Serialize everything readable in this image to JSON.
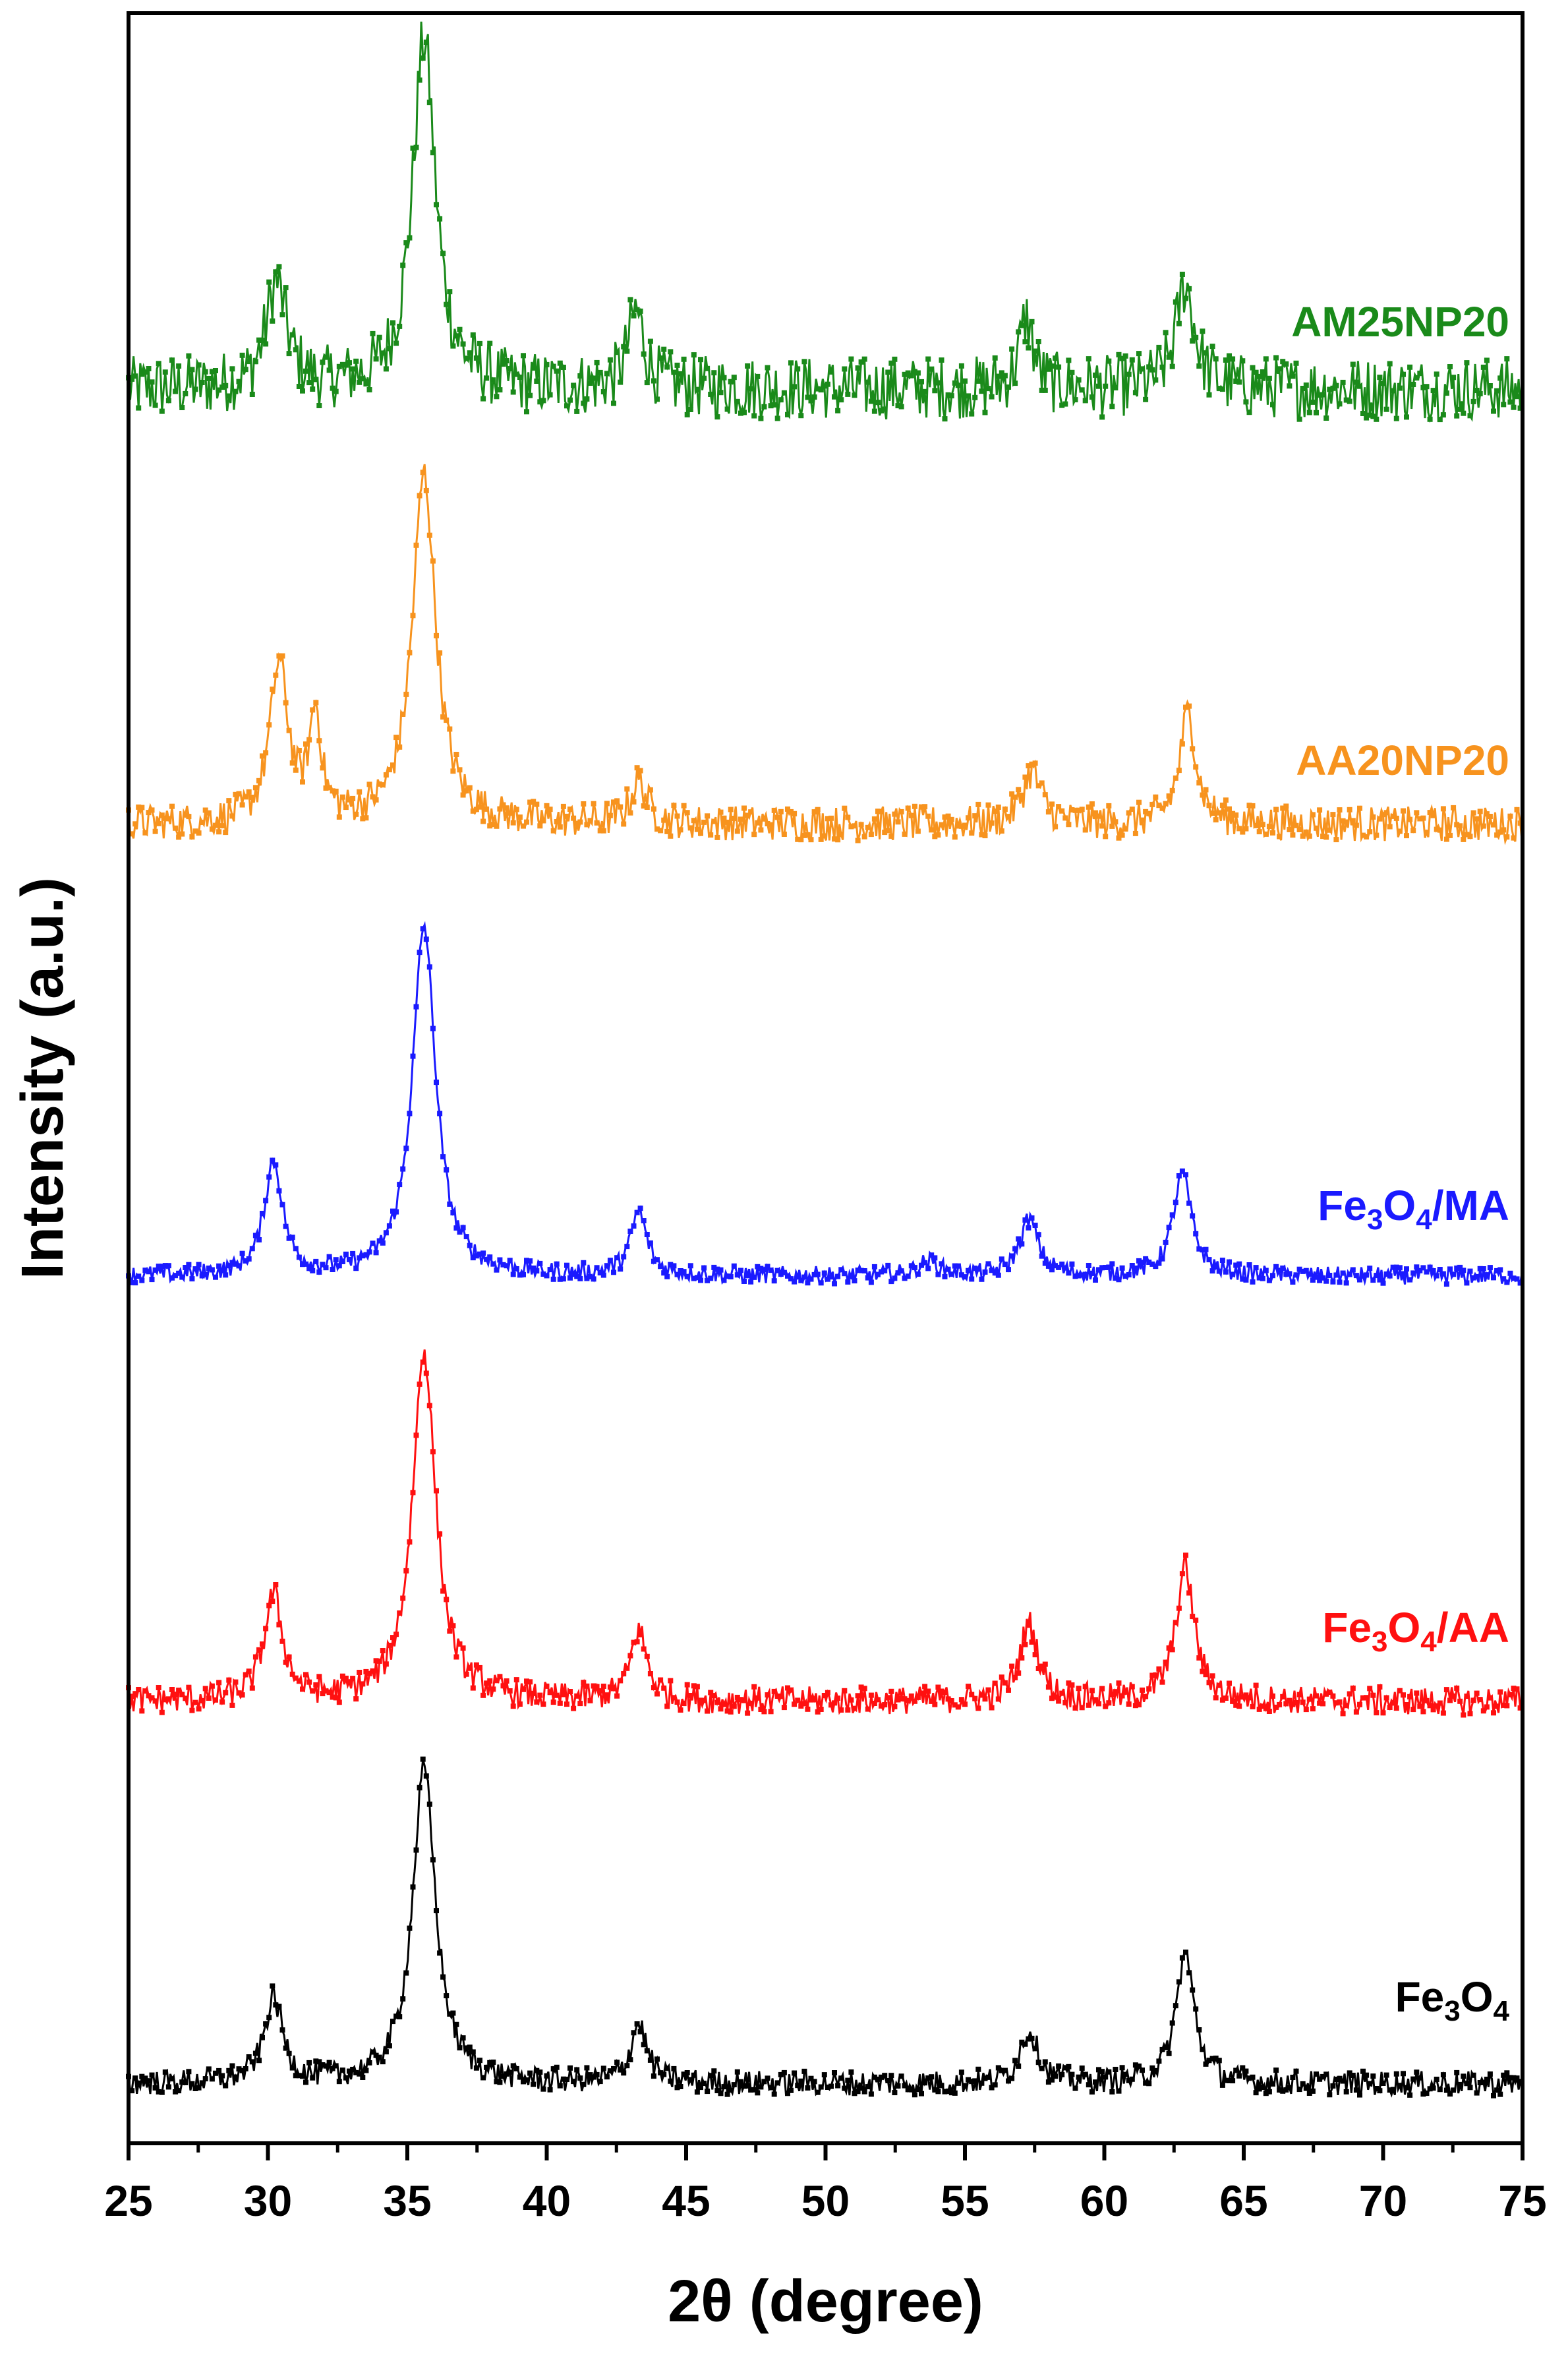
{
  "chart_data": {
    "type": "line",
    "title": "",
    "xlabel": "2θ (degree)",
    "ylabel": "Intensity (a.u.)",
    "xlim": [
      25,
      75
    ],
    "xticks": [
      "25",
      "30",
      "35",
      "40",
      "45",
      "50",
      "55",
      "60",
      "65",
      "70",
      "75"
    ],
    "y_ticks_shown": false,
    "series": [
      {
        "name": "AM25NP20",
        "label_main": "AM25NP20",
        "color": "#1a8a1a",
        "baseline": 4.0,
        "noise": 0.09,
        "peaks": [
          {
            "x": 30.3,
            "height": 0.3,
            "width": 0.9
          },
          {
            "x": 35.6,
            "height": 1.0,
            "width": 1.0
          },
          {
            "x": 43.2,
            "height": 0.22,
            "width": 0.7
          },
          {
            "x": 57.2,
            "height": 0.2,
            "width": 0.6
          },
          {
            "x": 62.9,
            "height": 0.3,
            "width": 0.8
          }
        ]
      },
      {
        "name": "AA20NP20",
        "label_main": "AA20NP20",
        "color": "#f7931e",
        "baseline": 3.0,
        "noise": 0.05,
        "peaks": [
          {
            "x": 30.4,
            "height": 0.45,
            "width": 0.8
          },
          {
            "x": 31.7,
            "height": 0.3,
            "width": 0.5
          },
          {
            "x": 35.6,
            "height": 1.0,
            "width": 1.0
          },
          {
            "x": 43.3,
            "height": 0.12,
            "width": 0.7
          },
          {
            "x": 57.4,
            "height": 0.15,
            "width": 0.8
          },
          {
            "x": 63.0,
            "height": 0.32,
            "width": 0.7
          }
        ]
      },
      {
        "name": "Fe3O4/MA",
        "label_main": "Fe",
        "label_sub1": "3",
        "label_mid": "O",
        "label_sub2": "4",
        "label_tail": "/MA",
        "color": "#1a1aff",
        "baseline": 2.0,
        "noise": 0.025,
        "peaks": [
          {
            "x": 30.2,
            "height": 0.32,
            "width": 0.8
          },
          {
            "x": 35.6,
            "height": 1.0,
            "width": 1.0
          },
          {
            "x": 43.3,
            "height": 0.18,
            "width": 0.7
          },
          {
            "x": 53.7,
            "height": 0.04,
            "width": 0.9
          },
          {
            "x": 57.3,
            "height": 0.16,
            "width": 0.8
          },
          {
            "x": 62.8,
            "height": 0.29,
            "width": 0.8
          }
        ]
      },
      {
        "name": "Fe3O4/AA",
        "label_main": "Fe",
        "label_sub1": "3",
        "label_mid": "O",
        "label_sub2": "4",
        "label_tail": "/AA",
        "color": "#ff1010",
        "baseline": 1.0,
        "noise": 0.04,
        "peaks": [
          {
            "x": 30.2,
            "height": 0.3,
            "width": 0.8
          },
          {
            "x": 35.6,
            "height": 1.0,
            "width": 1.0
          },
          {
            "x": 43.3,
            "height": 0.2,
            "width": 0.7
          },
          {
            "x": 57.3,
            "height": 0.22,
            "width": 0.8
          },
          {
            "x": 62.9,
            "height": 0.38,
            "width": 0.8
          }
        ]
      },
      {
        "name": "Fe3O4",
        "label_main": "Fe",
        "label_sub1": "3",
        "label_mid": "O",
        "label_sub2": "4",
        "label_tail": "",
        "color": "#000000",
        "baseline": 0.0,
        "noise": 0.035,
        "peaks": [
          {
            "x": 30.2,
            "height": 0.24,
            "width": 0.8
          },
          {
            "x": 35.6,
            "height": 0.9,
            "width": 1.0
          },
          {
            "x": 43.3,
            "height": 0.17,
            "width": 0.7
          },
          {
            "x": 57.3,
            "height": 0.15,
            "width": 0.8
          },
          {
            "x": 62.9,
            "height": 0.37,
            "width": 0.8
          }
        ]
      }
    ]
  }
}
